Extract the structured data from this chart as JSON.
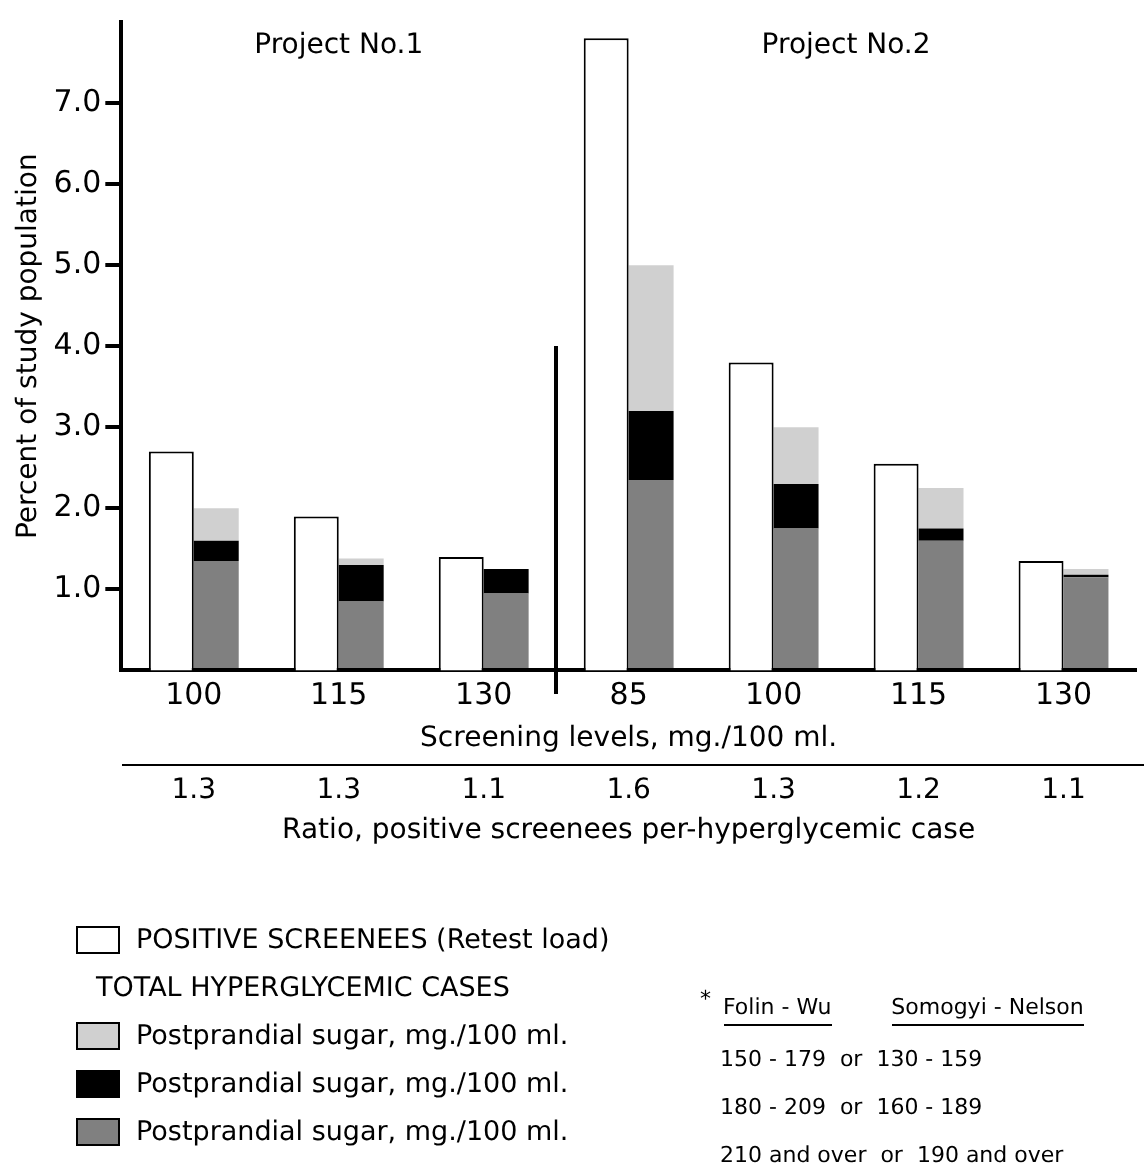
{
  "chart_data": [
    {
      "type": "bar",
      "xlabel": "Screening levels, mg./100 ml.",
      "ylabel": "Percent of study population",
      "categories": [
        "100",
        "115",
        "130",
        "85",
        "100",
        "115",
        "130"
      ],
      "series": [
        {
          "name": "POSITIVE SCREENEES (Retest load)",
          "color": "#ffffff",
          "values": [
            2.7,
            1.9,
            1.4,
            7.8,
            3.8,
            2.55,
            1.35
          ]
        }
      ],
      "ylim": [
        0,
        8
      ],
      "yticks": [
        {
          "value": 1,
          "label": "1.0"
        },
        {
          "value": 2,
          "label": "2.0"
        },
        {
          "value": 3,
          "label": "3.0"
        },
        {
          "value": 4,
          "label": "4.0"
        },
        {
          "value": 5,
          "label": "5.0"
        },
        {
          "value": 6,
          "label": "6.0"
        },
        {
          "value": 7,
          "label": "7.0"
        }
      ],
      "legend": "bottom",
      "grid": false,
      "annotations": [
        "Project No.1",
        "Project No.2",
        "1.3",
        "1.3",
        "1.1",
        "1.6",
        "1.3",
        "1.2",
        "1.1",
        "Ratio, positive screenees per-hyperglycemic case",
        "TOTAL HYPERGLYCEMIC CASES",
        "*",
        "Folin - Wu",
        "Somogyi - Nelson",
        "150 - 179  or  130 - 159",
        "180 - 209  or  160 - 189",
        "210 and over  or  190 and over"
      ]
    },
    {
      "type": "bar",
      "stacked": true,
      "categories": [
        "100",
        "115",
        "130",
        "85",
        "100",
        "115",
        "130"
      ],
      "series": [
        {
          "name": "Postprandial sugar, mg./100 ml.",
          "color": "#808080",
          "values": [
            1.35,
            0.85,
            0.95,
            2.35,
            1.75,
            1.6,
            1.15
          ]
        },
        {
          "name": "Postprandial sugar, mg./100 ml.",
          "color": "#000000",
          "values": [
            0.25,
            0.45,
            0.3,
            0.85,
            0.55,
            0.15,
            0.03
          ]
        },
        {
          "name": "Postprandial sugar, mg./100 ml.",
          "color": "#d0d0d0",
          "values": [
            0.4,
            0.08,
            null,
            1.8,
            0.7,
            0.5,
            0.07
          ]
        }
      ],
      "ylim": [
        0,
        8
      ],
      "tick_labels": false,
      "legend": "bottom",
      "grid": false
    }
  ]
}
